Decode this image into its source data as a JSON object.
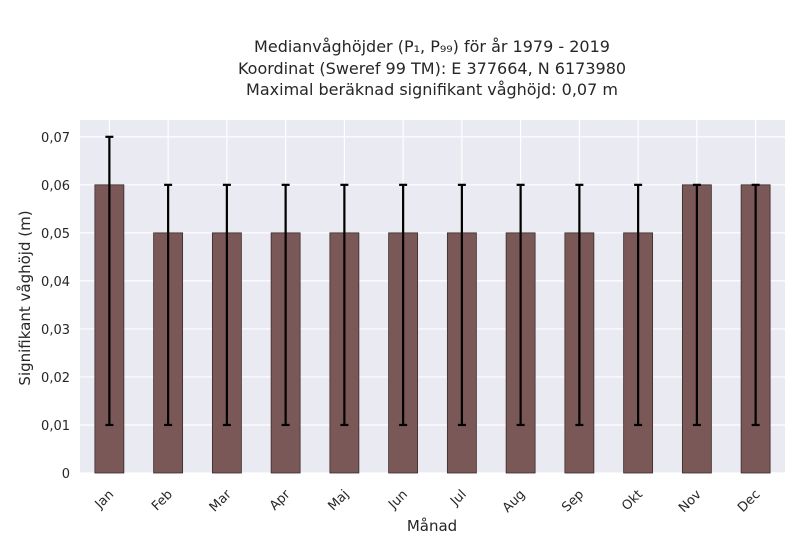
{
  "chart_data": {
    "type": "bar",
    "title_lines": [
      "Medianvåghöjder (P₁, P₉₉) för år 1979 - 2019",
      "Koordinat (Sweref 99 TM): E 377664, N 6173980",
      "Maximal beräknad signifikant våghöjd: 0,07 m"
    ],
    "xlabel": "Månad",
    "ylabel": "Signifikant våghöjd (m)",
    "categories": [
      "Jan",
      "Feb",
      "Mar",
      "Apr",
      "Maj",
      "Jun",
      "Jul",
      "Aug",
      "Sep",
      "Okt",
      "Nov",
      "Dec"
    ],
    "values": [
      0.06,
      0.05,
      0.05,
      0.05,
      0.05,
      0.05,
      0.05,
      0.05,
      0.05,
      0.05,
      0.06,
      0.06
    ],
    "error_low": [
      0.01,
      0.01,
      0.01,
      0.01,
      0.01,
      0.01,
      0.01,
      0.01,
      0.01,
      0.01,
      0.01,
      0.01
    ],
    "error_high": [
      0.07,
      0.06,
      0.06,
      0.06,
      0.06,
      0.06,
      0.06,
      0.06,
      0.06,
      0.06,
      0.06,
      0.06
    ],
    "ylim": [
      0,
      0.0735
    ],
    "yticks": [
      0,
      0.01,
      0.02,
      0.03,
      0.04,
      0.05,
      0.06,
      0.07
    ],
    "ytick_labels": [
      "0",
      "0,01",
      "0,02",
      "0,03",
      "0,04",
      "0,05",
      "0,06",
      "0,07"
    ],
    "grid": true,
    "colors": {
      "bar": "#7a5858",
      "bar_edge": "#3a2a2a",
      "error": "#000000",
      "plot_bg": "#eaeaf2",
      "grid": "#ffffff"
    }
  }
}
